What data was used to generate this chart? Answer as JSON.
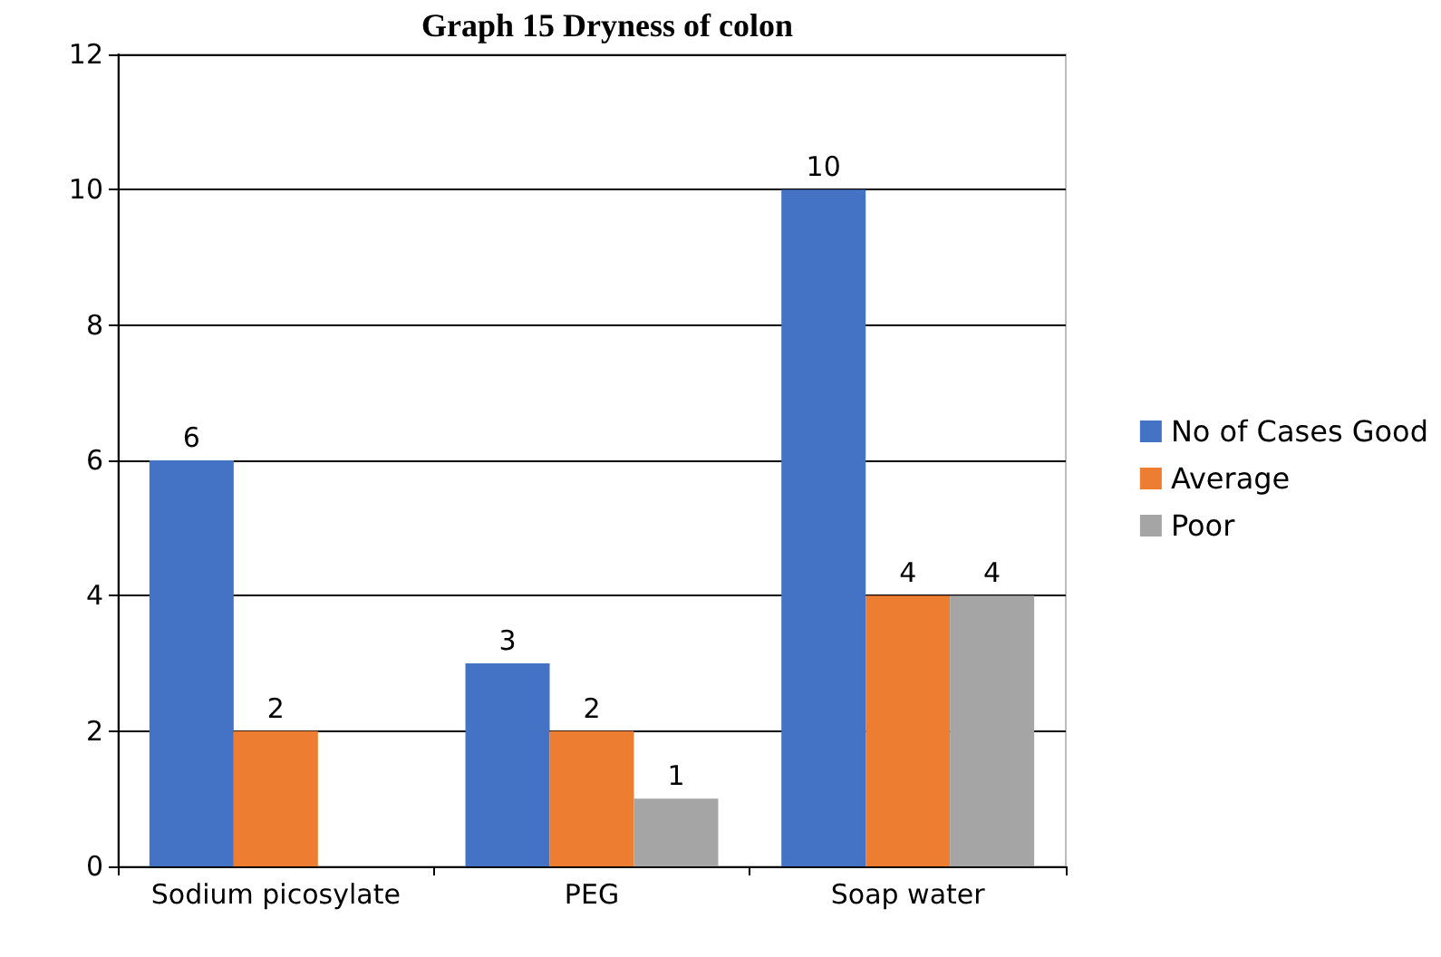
{
  "chart_data": {
    "type": "bar",
    "title": "Graph 15 Dryness of colon",
    "categories": [
      "Sodium picosylate",
      "PEG",
      "Soap water"
    ],
    "series": [
      {
        "name": "No of Cases Good",
        "color": "#4472c4",
        "values": [
          6,
          3,
          10
        ]
      },
      {
        "name": "Average",
        "color": "#ed7d31",
        "values": [
          2,
          2,
          4
        ]
      },
      {
        "name": "Poor",
        "color": "#a5a5a5",
        "values": [
          null,
          1,
          4
        ]
      }
    ],
    "ylim": [
      0,
      12
    ],
    "yticks": [
      0,
      2,
      4,
      6,
      8,
      10,
      12
    ],
    "grid": "y",
    "legend": "right",
    "data_labels": true
  }
}
